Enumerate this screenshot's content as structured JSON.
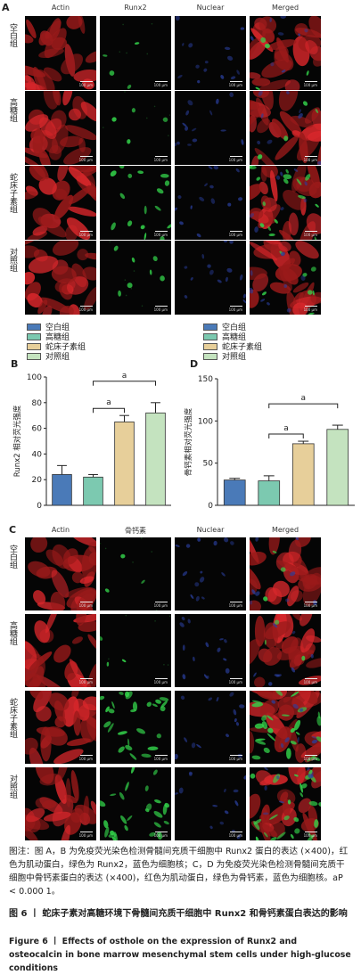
{
  "panelA": {
    "letter": "A",
    "columns": [
      "Actin",
      "Runx2",
      "Nuclear",
      "Merged"
    ],
    "rows": [
      "空白组",
      "高糖组",
      "蛇床子素组",
      "对照组"
    ],
    "scale_label": "100 μm"
  },
  "legend": {
    "items": [
      "空白组",
      "高糖组",
      "蛇床子素组",
      "对照组"
    ],
    "colors": [
      "#4a7ab8",
      "#7cc9b0",
      "#e7cf9a",
      "#c4e3bf"
    ]
  },
  "panelB": {
    "letter": "B"
  },
  "panelD": {
    "letter": "D"
  },
  "panelC": {
    "letter": "C",
    "columns": [
      "Actin",
      "骨钙素",
      "Nuclear",
      "Merged"
    ],
    "rows": [
      "空白组",
      "高糖组",
      "蛇床子素组",
      "对照组"
    ],
    "scale_label": "100 μm"
  },
  "chart_data": [
    {
      "type": "bar",
      "categories": [
        "空白组",
        "高糖组",
        "蛇床子素组",
        "对照组"
      ],
      "values": [
        24,
        22,
        65,
        72
      ],
      "errors": [
        7,
        2,
        5,
        8
      ],
      "ylabel": "Runx2 相对荧光强度",
      "ylim": [
        0,
        100
      ],
      "yticks": [
        0,
        20,
        40,
        60,
        80,
        100
      ],
      "significance": [
        {
          "from": 1,
          "to": 2,
          "label": "a"
        },
        {
          "from": 1,
          "to": 3,
          "label": "a"
        }
      ]
    },
    {
      "type": "bar",
      "categories": [
        "空白组",
        "高糖组",
        "蛇床子素组",
        "对照组"
      ],
      "values": [
        30,
        29,
        73,
        90
      ],
      "errors": [
        2,
        6,
        3,
        5
      ],
      "ylabel": "骨钙素相对荧光强度",
      "ylim": [
        0,
        150
      ],
      "yticks": [
        0,
        50,
        100,
        150
      ],
      "significance": [
        {
          "from": 1,
          "to": 2,
          "label": "a"
        },
        {
          "from": 1,
          "to": 3,
          "label": "a"
        }
      ]
    }
  ],
  "caption": {
    "note": "图注：图 A，B 为免疫荧光染色检测骨髓间充质干细胞中 Runx2 蛋白的表达 (×400)，红色为肌动蛋白，绿色为 Runx2，蓝色为细胞核；C，D 为免疫荧光染色检测骨髓间充质干细胞中骨钙素蛋白的表达 (×400)，红色为肌动蛋白，绿色为骨钙素，蓝色为细胞核。aP < 0.000 1。",
    "title_cn": "图 6 丨 蛇床子素对高糖环境下骨髓间充质干细胞中 Runx2 和骨钙素蛋白表达的影响",
    "title_en": "Figure 6 丨 Effects of osthole on the expression of Runx2 and osteocalcin in bone marrow mesenchymal stem cells under high-glucose conditions"
  }
}
